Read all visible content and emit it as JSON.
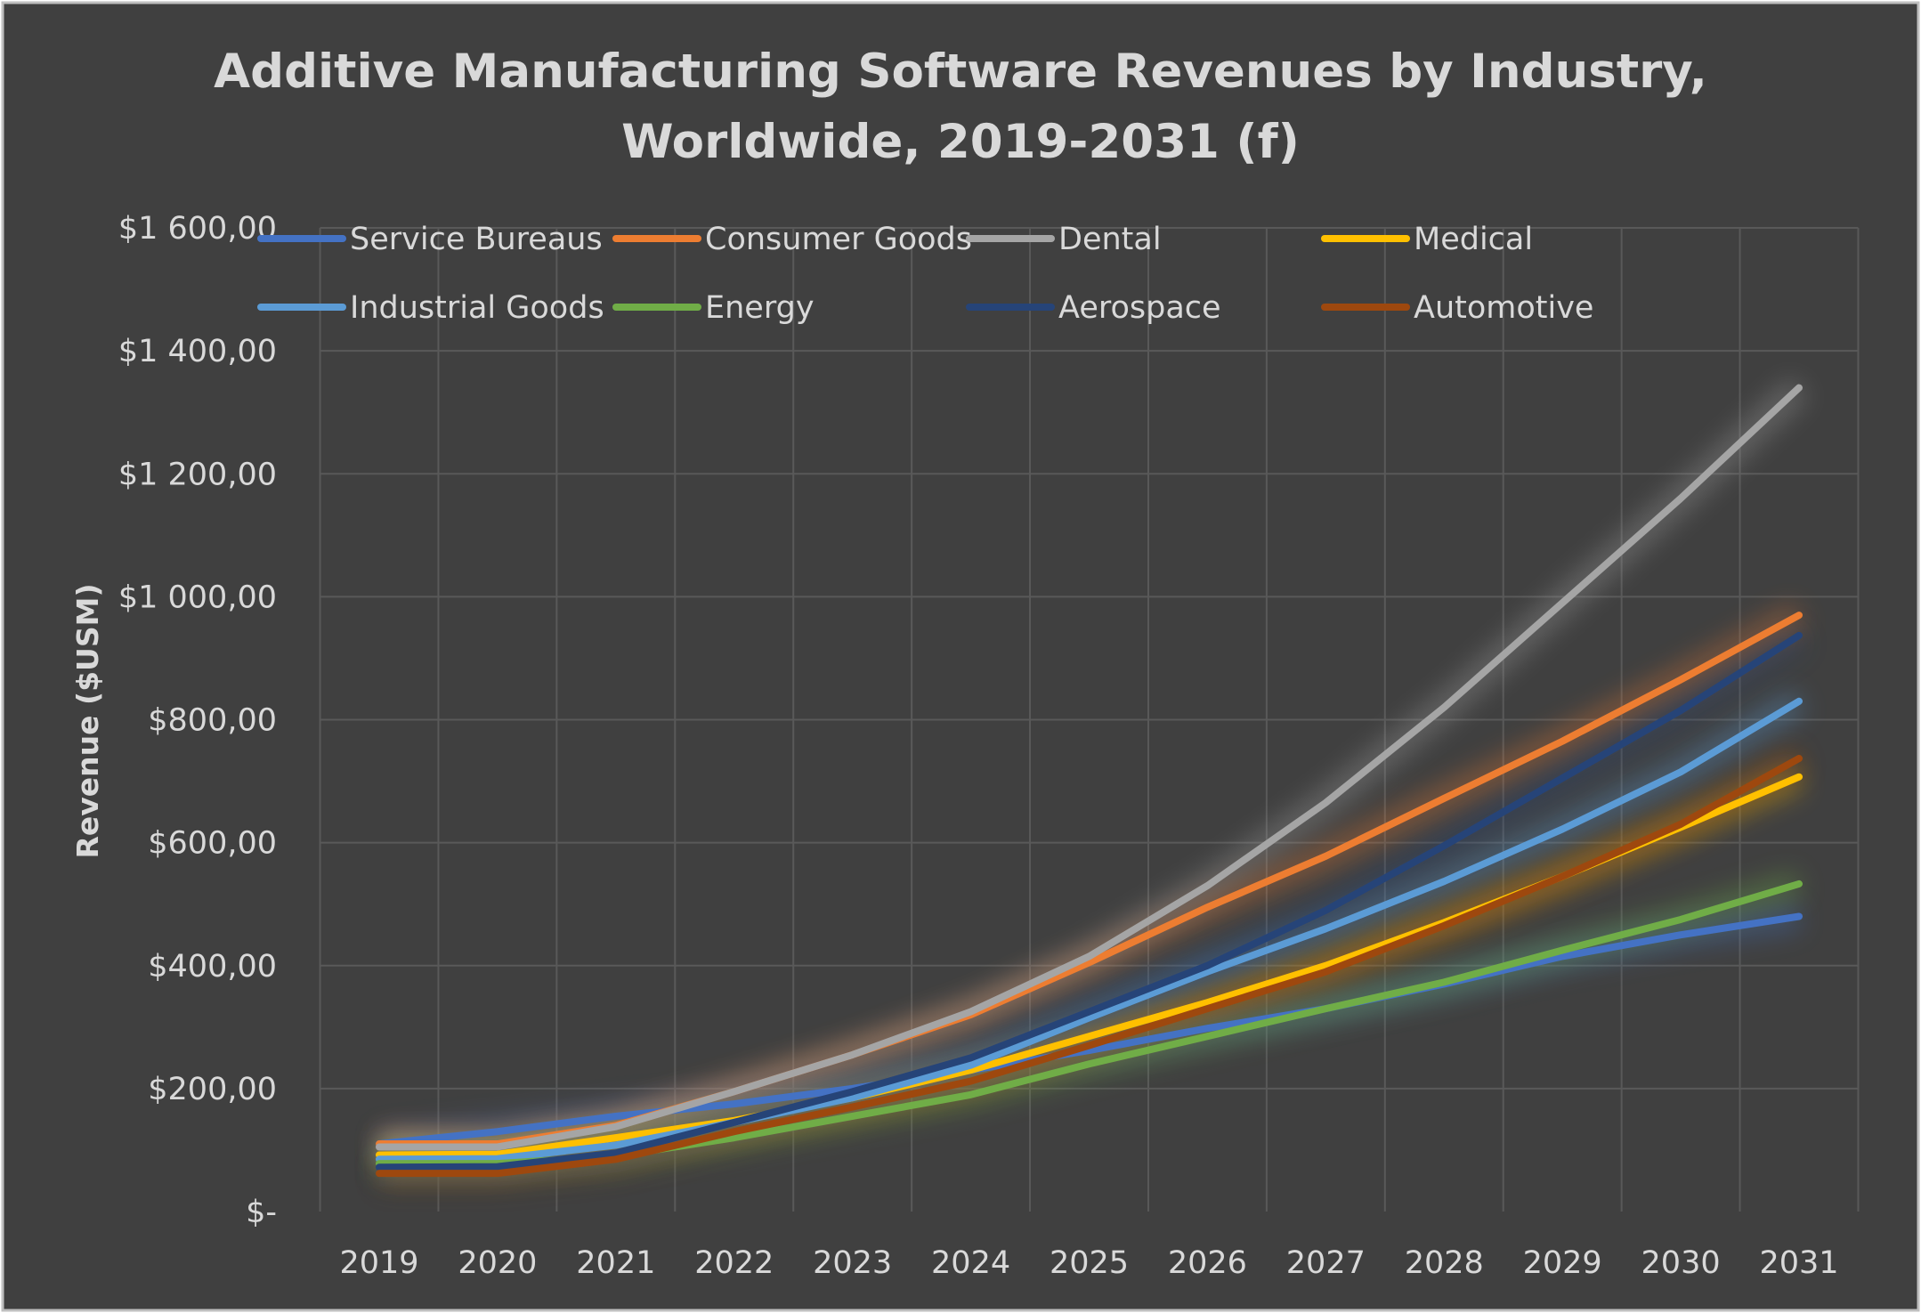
{
  "chart_data": {
    "type": "line",
    "title_lines": [
      "Additive Manufacturing Software Revenues by Industry,",
      "Worldwide, 2019-2031 (f)"
    ],
    "xlabel": "",
    "ylabel": "Revenue ($USM)",
    "ylim": [
      0,
      1600
    ],
    "y_ticks": [
      0,
      200,
      400,
      600,
      800,
      1000,
      1200,
      1400,
      1600
    ],
    "y_tick_labels": [
      "$-",
      "$200,00",
      "$400,00",
      "$600,00",
      "$800,00",
      "$1 000,00",
      "$1 200,00",
      "$1 400,00",
      "$1 600,00"
    ],
    "categories": [
      "2019",
      "2020",
      "2021",
      "2022",
      "2023",
      "2024",
      "2025",
      "2026",
      "2027",
      "2028",
      "2029",
      "2030",
      "2031"
    ],
    "grid": true,
    "legend_placement": "top",
    "background": "#404040",
    "series": [
      {
        "name": "Service Bureaus",
        "color": "#4472C4",
        "values": [
          110,
          130,
          155,
          175,
          200,
          230,
          262,
          298,
          330,
          370,
          415,
          450,
          480
        ]
      },
      {
        "name": "Consumer Goods",
        "color": "#ED7D31",
        "values": [
          110,
          110,
          140,
          195,
          255,
          320,
          405,
          495,
          578,
          672,
          765,
          865,
          970
        ]
      },
      {
        "name": "Dental",
        "color": "#A5A5A5",
        "values": [
          105,
          105,
          138,
          195,
          255,
          325,
          415,
          530,
          665,
          820,
          990,
          1160,
          1340
        ]
      },
      {
        "name": "Medical",
        "color": "#FFC000",
        "values": [
          92,
          93,
          120,
          148,
          185,
          230,
          285,
          340,
          400,
          470,
          545,
          625,
          707
        ]
      },
      {
        "name": "Industrial Goods",
        "color": "#5B9BD5",
        "values": [
          85,
          86,
          108,
          145,
          185,
          238,
          315,
          390,
          460,
          537,
          622,
          715,
          830
        ]
      },
      {
        "name": "Energy",
        "color": "#70AD47",
        "values": [
          78,
          78,
          90,
          120,
          155,
          190,
          240,
          285,
          330,
          373,
          425,
          475,
          533
        ]
      },
      {
        "name": "Aerospace",
        "color": "#264478",
        "values": [
          72,
          73,
          95,
          145,
          195,
          250,
          325,
          400,
          490,
          595,
          705,
          815,
          937
        ]
      },
      {
        "name": "Automotive",
        "color": "#9E480E",
        "values": [
          62,
          62,
          85,
          130,
          170,
          212,
          270,
          330,
          390,
          465,
          545,
          630,
          737
        ]
      }
    ]
  }
}
